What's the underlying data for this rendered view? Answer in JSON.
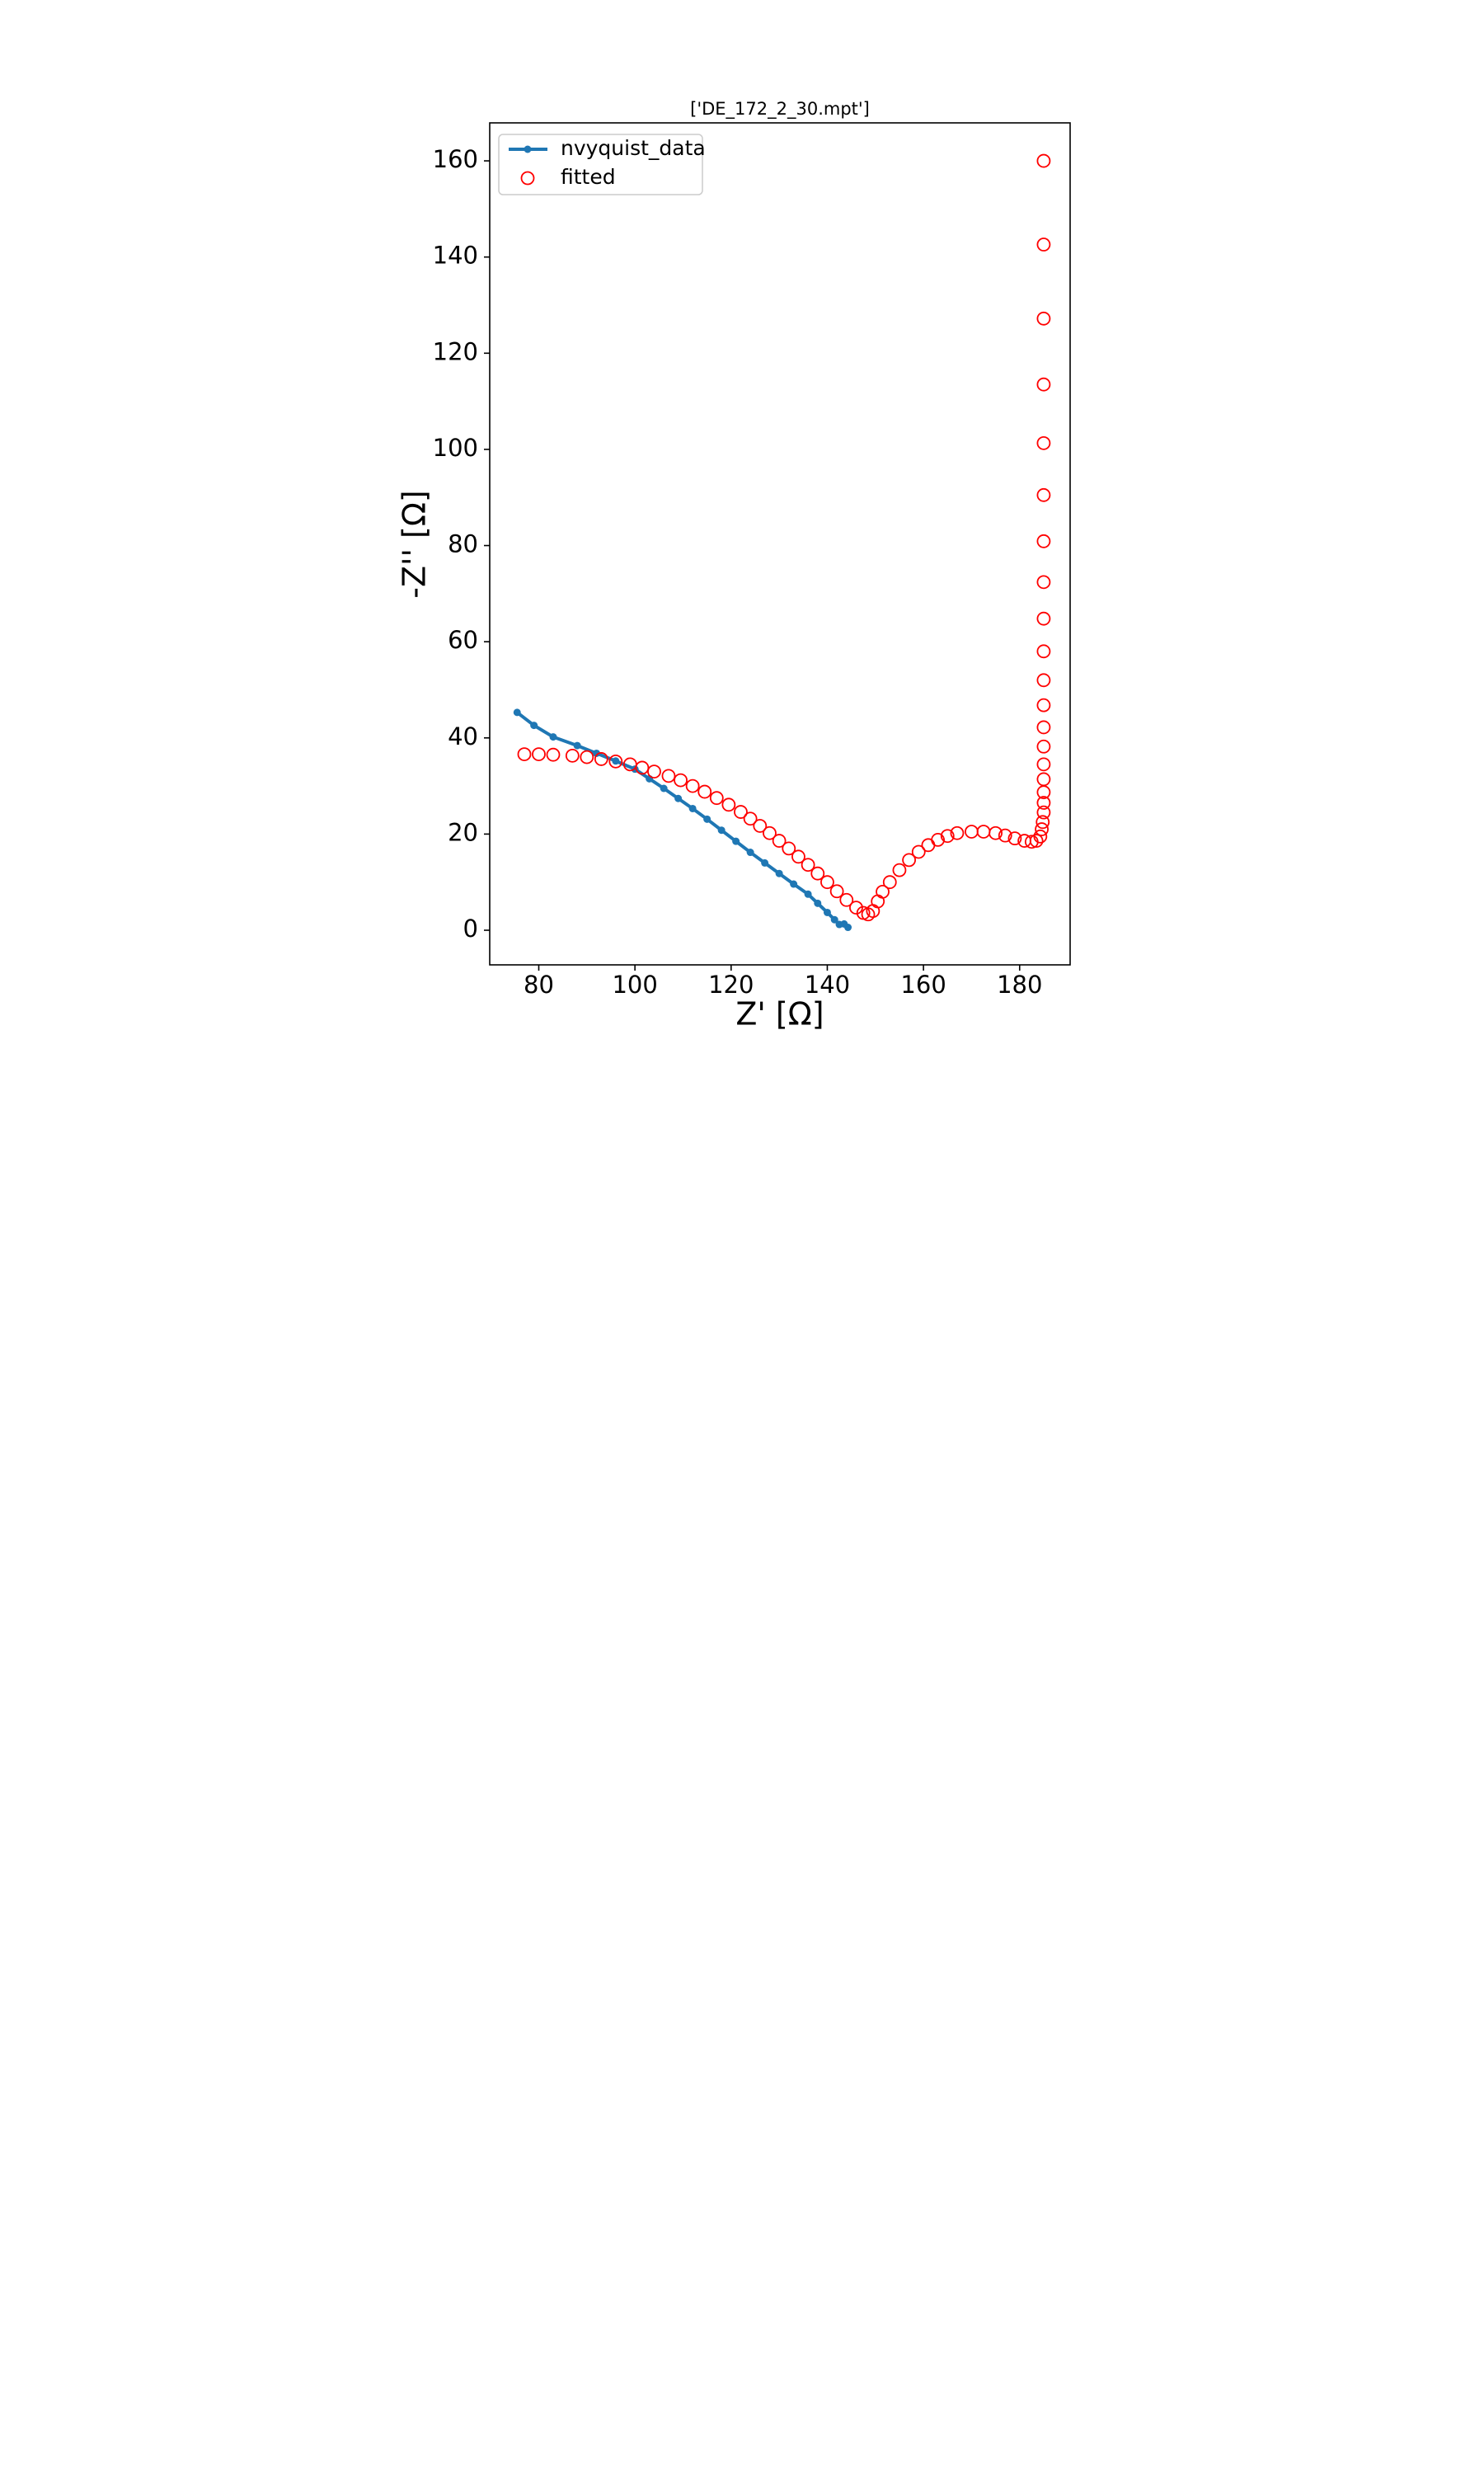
{
  "chart_data": {
    "type": "scatter",
    "title": "['DE_172_2_30.mpt']",
    "x_label": "Z' [Ω]",
    "y_label": "-Z'' [Ω]",
    "xlim": [
      69.8,
      190.5
    ],
    "xticks": [
      80,
      100,
      120,
      140,
      160,
      180
    ],
    "ylim": [
      -7.2,
      167.9
    ],
    "yticks": [
      0,
      20,
      40,
      60,
      80,
      100,
      120,
      140,
      160
    ],
    "legend": "upper left",
    "series": [
      {
        "name": "nvyquist_data",
        "color": "#1f77b4",
        "style": "line-dots",
        "x": [
          75.5,
          79,
          83,
          88,
          92,
          96,
          100,
          103,
          106,
          109,
          112,
          115,
          118,
          121,
          124,
          127,
          130,
          133,
          136,
          138,
          140,
          141.5,
          142.5,
          143.5,
          144.3
        ],
        "values": [
          45.3,
          42.6,
          40.2,
          38.4,
          36.8,
          35.2,
          33.5,
          31.5,
          29.5,
          27.4,
          25.3,
          23.1,
          20.8,
          18.5,
          16.2,
          14,
          11.8,
          9.6,
          7.5,
          5.6,
          3.7,
          2.2,
          1.2,
          1.3,
          0.6
        ]
      },
      {
        "name": "fitted",
        "color": "#ff0000",
        "style": "open-circles",
        "x": [
          77,
          80,
          83,
          87,
          90,
          93,
          96,
          99,
          101.5,
          104,
          107,
          109.5,
          112,
          114.5,
          117,
          119.5,
          122,
          124,
          126,
          128,
          130,
          132,
          134,
          136,
          138,
          140,
          142,
          144,
          146,
          147.5,
          148.5,
          149.5,
          150.5,
          151.5,
          153,
          155,
          157,
          159,
          161,
          163,
          165,
          167,
          170,
          172.5,
          175,
          177,
          179,
          181,
          182.5,
          183.5,
          184.3,
          184.6,
          184.8,
          185,
          185,
          185,
          185,
          185,
          185,
          185,
          185,
          185,
          185,
          185,
          185,
          185,
          185,
          185,
          185,
          185,
          185,
          185
        ],
        "values": [
          36.6,
          36.6,
          36.5,
          36.3,
          36,
          35.6,
          35.1,
          34.5,
          33.8,
          33,
          32.1,
          31.2,
          30,
          28.8,
          27.5,
          26.1,
          24.6,
          23.2,
          21.7,
          20.2,
          18.6,
          17,
          15.3,
          13.6,
          11.8,
          10,
          8.1,
          6.3,
          4.7,
          3.6,
          3.3,
          4,
          6,
          8,
          10,
          12.5,
          14.6,
          16.3,
          17.7,
          18.8,
          19.6,
          20.2,
          20.5,
          20.5,
          20.2,
          19.7,
          19.1,
          18.6,
          18.4,
          18.6,
          19.5,
          21,
          22.5,
          24.5,
          26.5,
          28.7,
          31.4,
          34.5,
          38.2,
          42.2,
          46.8,
          52,
          58,
          64.8,
          72.4,
          80.9,
          90.5,
          101.3,
          113.5,
          127.2,
          142.6,
          160
        ]
      }
    ]
  }
}
